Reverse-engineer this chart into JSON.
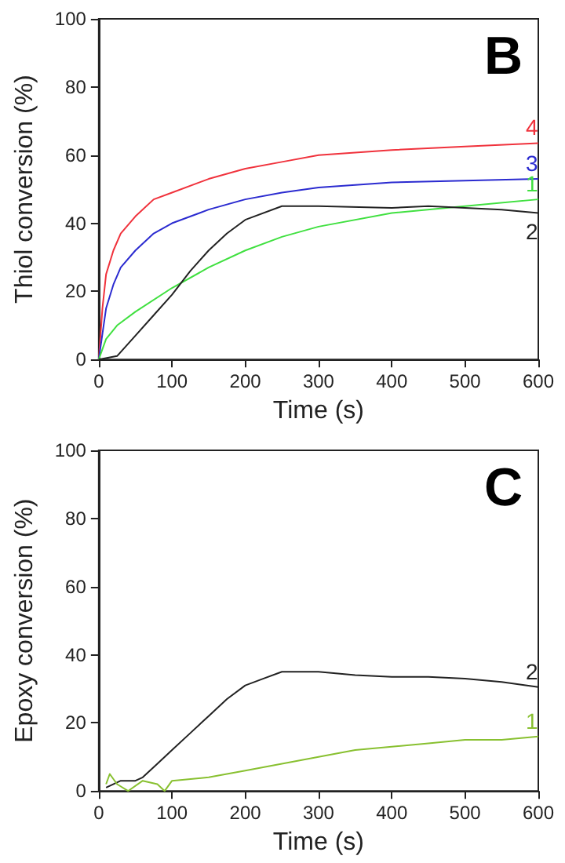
{
  "chart_data": [
    {
      "type": "line",
      "title": "B",
      "xlabel": "Time (s)",
      "ylabel": "Thiol conversion (%)",
      "xlim": [
        0,
        600
      ],
      "xticks": [
        0,
        100,
        200,
        300,
        400,
        500,
        600
      ],
      "ylim": [
        0,
        100
      ],
      "yticks": [
        0,
        20,
        40,
        60,
        80,
        100
      ],
      "grid": false,
      "legend": false,
      "marker": "none",
      "line_style": "solid",
      "series": [
        {
          "name": "4",
          "color": "#f0323c",
          "x": [
            0,
            5,
            10,
            20,
            30,
            50,
            75,
            100,
            150,
            200,
            250,
            300,
            400,
            500,
            600
          ],
          "values": [
            0,
            15,
            25,
            32,
            37,
            42,
            47,
            49,
            53,
            56,
            58,
            60,
            61.5,
            62.5,
            63.5
          ]
        },
        {
          "name": "3",
          "color": "#2b2bd0",
          "x": [
            0,
            10,
            20,
            30,
            50,
            75,
            100,
            150,
            200,
            250,
            300,
            400,
            500,
            600
          ],
          "values": [
            0,
            15,
            22,
            27,
            32,
            37,
            40,
            44,
            47,
            49,
            50.5,
            52,
            52.5,
            53
          ]
        },
        {
          "name": "1",
          "color": "#40e040",
          "x": [
            0,
            10,
            25,
            50,
            100,
            150,
            200,
            250,
            300,
            400,
            500,
            600
          ],
          "values": [
            0,
            6,
            10,
            14,
            21,
            27,
            32,
            36,
            39,
            43,
            45,
            47
          ]
        },
        {
          "name": "2",
          "color": "#222222",
          "x": [
            0,
            25,
            50,
            75,
            100,
            125,
            150,
            175,
            200,
            250,
            300,
            400,
            450,
            500,
            550,
            600
          ],
          "values": [
            0,
            1,
            7,
            13,
            19,
            26,
            32,
            37,
            41,
            45,
            45,
            44.5,
            45,
            44.5,
            44,
            43
          ]
        }
      ]
    },
    {
      "type": "line",
      "title": "C",
      "xlabel": "Time (s)",
      "ylabel": "Epoxy conversion (%)",
      "xlim": [
        0,
        600
      ],
      "xticks": [
        0,
        100,
        200,
        300,
        400,
        500,
        600
      ],
      "ylim": [
        0,
        100
      ],
      "yticks": [
        0,
        20,
        40,
        60,
        80,
        100
      ],
      "grid": false,
      "legend": false,
      "marker": "none",
      "line_style": "solid",
      "series": [
        {
          "name": "2",
          "color": "#222222",
          "x": [
            10,
            30,
            50,
            60,
            80,
            100,
            125,
            150,
            175,
            200,
            225,
            250,
            300,
            350,
            400,
            450,
            500,
            550,
            600
          ],
          "values": [
            1,
            3,
            3,
            4,
            8,
            12,
            17,
            22,
            27,
            31,
            33,
            35,
            35,
            34,
            33.5,
            33.5,
            33,
            32,
            30.5
          ]
        },
        {
          "name": "1",
          "color": "#88c030",
          "x": [
            10,
            15,
            25,
            40,
            60,
            80,
            90,
            100,
            150,
            200,
            250,
            300,
            350,
            400,
            450,
            500,
            550,
            600
          ],
          "values": [
            2,
            5,
            2,
            0,
            3,
            2,
            0,
            3,
            4,
            6,
            8,
            10,
            12,
            13,
            14,
            15,
            15,
            16
          ]
        }
      ]
    }
  ]
}
